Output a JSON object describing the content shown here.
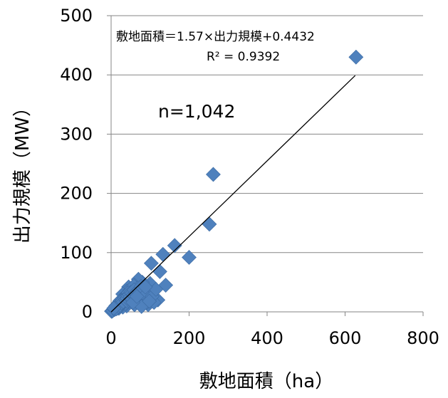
{
  "chart_data": {
    "type": "scatter",
    "xlabel": "敷地面積（ha）",
    "ylabel": "出力規模（MW）",
    "xlim": [
      0,
      800
    ],
    "ylim": [
      0,
      500
    ],
    "x_ticks": [
      "0",
      "200",
      "400",
      "600",
      "800"
    ],
    "y_ticks": [
      "0",
      "100",
      "200",
      "300",
      "400",
      "500"
    ],
    "grid": "horizontal",
    "marker_color": "#4F81BD",
    "trendline_color": "#000000",
    "annotations": {
      "equation": "敷地面積＝1.57×出力規模+0.4432",
      "r_squared": "R² = 0.9392",
      "n": "n=1,042"
    },
    "trendline": {
      "slope": 0.6378,
      "intercept": -0.28
    },
    "series": [
      {
        "points": [
          [
            628,
            430
          ],
          [
            262,
            232
          ],
          [
            252,
            148
          ],
          [
            163,
            112
          ],
          [
            133,
            97
          ],
          [
            200,
            92
          ],
          [
            103,
            82
          ],
          [
            125,
            68
          ],
          [
            140,
            45
          ],
          [
            120,
            20
          ],
          [
            100,
            48
          ],
          [
            80,
            50
          ],
          [
            70,
            55
          ],
          [
            60,
            45
          ],
          [
            90,
            38
          ],
          [
            75,
            30
          ],
          [
            65,
            20
          ],
          [
            55,
            38
          ],
          [
            45,
            42
          ],
          [
            40,
            35
          ],
          [
            50,
            30
          ],
          [
            35,
            25
          ],
          [
            30,
            30
          ],
          [
            25,
            20
          ],
          [
            20,
            15
          ],
          [
            15,
            12
          ],
          [
            10,
            8
          ],
          [
            8,
            5
          ],
          [
            5,
            3
          ],
          [
            3,
            2
          ],
          [
            2,
            1
          ],
          [
            1,
            1
          ],
          [
            12,
            10
          ],
          [
            18,
            14
          ],
          [
            22,
            18
          ],
          [
            28,
            22
          ],
          [
            33,
            20
          ],
          [
            38,
            28
          ],
          [
            42,
            30
          ],
          [
            48,
            36
          ],
          [
            52,
            40
          ],
          [
            58,
            44
          ],
          [
            62,
            34
          ],
          [
            68,
            40
          ],
          [
            72,
            26
          ],
          [
            85,
            22
          ],
          [
            95,
            12
          ],
          [
            110,
            16
          ],
          [
            60,
            12
          ],
          [
            40,
            10
          ],
          [
            30,
            8
          ],
          [
            20,
            6
          ],
          [
            6,
            3
          ],
          [
            14,
            9
          ],
          [
            24,
            16
          ],
          [
            34,
            24
          ],
          [
            44,
            32
          ],
          [
            54,
            22
          ],
          [
            64,
            18
          ],
          [
            74,
            14
          ],
          [
            82,
            18
          ],
          [
            46,
            18
          ],
          [
            36,
            14
          ],
          [
            26,
            12
          ],
          [
            16,
            6
          ],
          [
            4,
            2
          ],
          [
            9,
            4
          ],
          [
            11,
            6
          ],
          [
            13,
            5
          ],
          [
            17,
            11
          ],
          [
            19,
            9
          ],
          [
            21,
            13
          ],
          [
            23,
            11
          ],
          [
            27,
            15
          ],
          [
            29,
            19
          ],
          [
            31,
            17
          ],
          [
            37,
            21
          ],
          [
            39,
            19
          ],
          [
            41,
            23
          ],
          [
            43,
            27
          ],
          [
            47,
            29
          ],
          [
            49,
            25
          ],
          [
            51,
            33
          ],
          [
            53,
            31
          ],
          [
            57,
            29
          ],
          [
            59,
            37
          ],
          [
            63,
            31
          ],
          [
            67,
            35
          ],
          [
            71,
            37
          ],
          [
            77,
            43
          ],
          [
            87,
            28
          ],
          [
            92,
            16
          ],
          [
            105,
            26
          ],
          [
            115,
            38
          ],
          [
            78,
            9
          ],
          [
            98,
            18
          ],
          [
            88,
            42
          ],
          [
            56,
            16
          ],
          [
            66,
            26
          ],
          [
            7,
            6
          ]
        ]
      }
    ]
  }
}
